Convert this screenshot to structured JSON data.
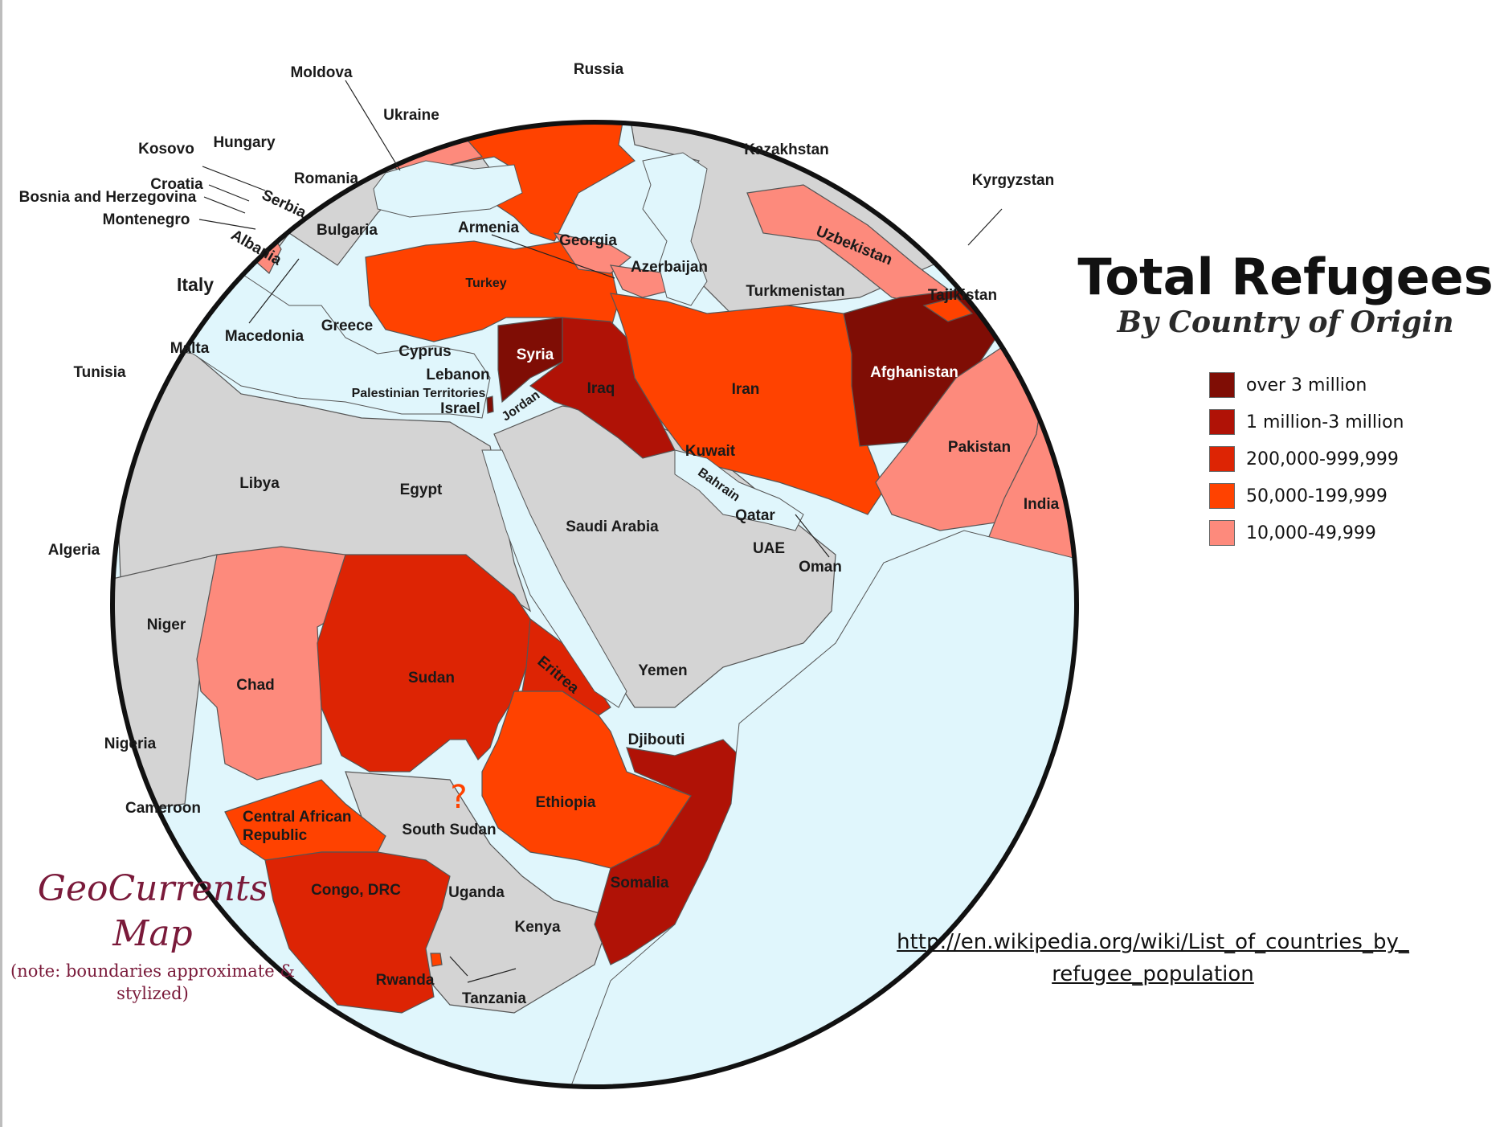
{
  "title": "Total Refugees",
  "subtitle": "By Country of Origin",
  "legend": [
    {
      "label": "over 3 million",
      "color": "#7f0d05"
    },
    {
      "label": "1 million-3 million",
      "color": "#b01206"
    },
    {
      "label": "200,000-999,999",
      "color": "#dd2404"
    },
    {
      "label": "50,000-199,999",
      "color": "#ff4200"
    },
    {
      "label": "10,000-49,999",
      "color": "#fd8a7c"
    }
  ],
  "source_url_line1": "http://en.wikipedia.org/wiki/List_of_countries_by_",
  "source_url_line2": "refugee_population",
  "brand": {
    "name_line1": "GeoCurrents",
    "name_line2": "Map",
    "note": "(note: boundaries approximate & stylized)"
  },
  "colors": {
    "none": "#d4d4d4",
    "water": "#e0f6fc",
    "circle_outline": "#111111"
  },
  "unknown_marker": "?",
  "countries": {
    "moldova": "Moldova",
    "russia": "Russia",
    "ukraine": "Ukraine",
    "hungary": "Hungary",
    "kosovo": "Kosovo",
    "romania": "Romania",
    "croatia": "Croatia",
    "bosnia": "Bosnia and Herzegovina",
    "serbia": "Serbia",
    "montenegro": "Montenegro",
    "bulgaria": "Bulgaria",
    "albania": "Albania",
    "italy": "Italy",
    "macedonia": "Macedonia",
    "greece": "Greece",
    "malta": "Malta",
    "tunisia": "Tunisia",
    "cyprus": "Cyprus",
    "lebanon": "Lebanon",
    "palestinian": "Palestinian Territories",
    "israel": "Israel",
    "syria": "Syria",
    "jordan": "Jordan",
    "iraq": "Iraq",
    "kazakhstan": "Kazakhstan",
    "kyrgyzstan": "Kyrgyzstan",
    "armenia": "Armenia",
    "georgia": "Georgia",
    "azerbaijan": "Azerbaijan",
    "uzbekistan": "Uzbekistan",
    "turkey": "Turkey",
    "turkmenistan": "Turkmenistan",
    "tajikistan": "Tajikistan",
    "iran": "Iran",
    "afghanistan": "Afghanistan",
    "pakistan": "Pakistan",
    "india": "India",
    "kuwait": "Kuwait",
    "bahrain": "Bahrain",
    "qatar": "Qatar",
    "uae": "UAE",
    "oman": "Oman",
    "saudi": "Saudi Arabia",
    "libya": "Libya",
    "egypt": "Egypt",
    "algeria": "Algeria",
    "niger": "Niger",
    "chad": "Chad",
    "sudan": "Sudan",
    "eritrea": "Eritrea",
    "yemen": "Yemen",
    "nigeria": "Nigeria",
    "djibouti": "Djibouti",
    "cameroon": "Cameroon",
    "car": "Central African Republic",
    "ethiopia": "Ethiopia",
    "south_sudan": "South Sudan",
    "somalia": "Somalia",
    "congo": "Congo, DRC",
    "uganda": "Uganda",
    "kenya": "Kenya",
    "rwanda": "Rwanda",
    "tanzania": "Tanzania"
  }
}
